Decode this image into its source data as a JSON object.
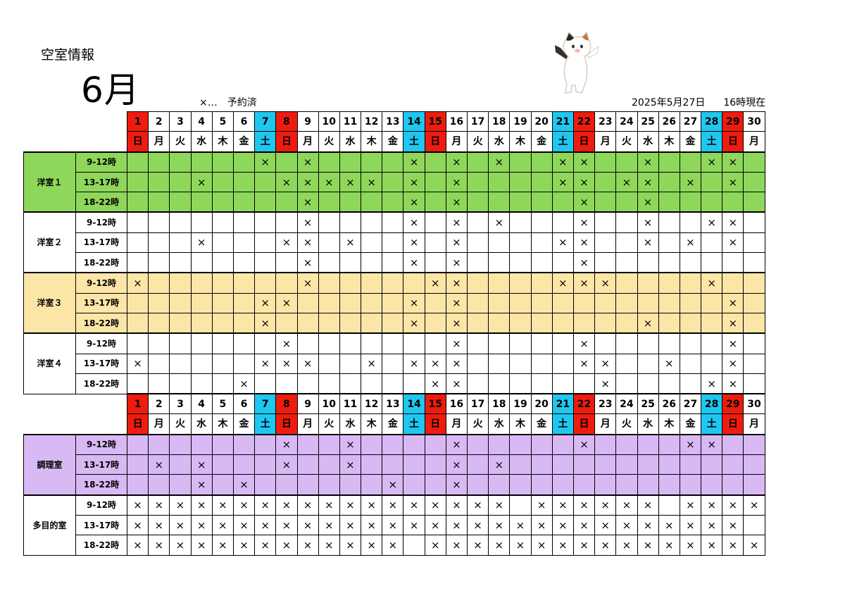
{
  "title": "空室情報",
  "month": "6月",
  "legend": "×…　予約済",
  "as_of_date": "2025年5月27日",
  "as_of_time": "16時現在",
  "colors": {
    "sunday": "#ee1c0e",
    "saturday": "#1fc7f0",
    "room1": "#8fd75b",
    "room3": "#fbe6a8",
    "cooking": "#d9b9f4"
  },
  "days": [
    "1",
    "2",
    "3",
    "4",
    "5",
    "6",
    "7",
    "8",
    "9",
    "10",
    "11",
    "12",
    "13",
    "14",
    "15",
    "16",
    "17",
    "18",
    "19",
    "20",
    "21",
    "22",
    "23",
    "24",
    "25",
    "26",
    "27",
    "28",
    "29",
    "30"
  ],
  "weekdays": [
    "日",
    "月",
    "火",
    "水",
    "木",
    "金",
    "土",
    "日",
    "月",
    "火",
    "水",
    "木",
    "金",
    "土",
    "日",
    "月",
    "火",
    "水",
    "木",
    "金",
    "土",
    "日",
    "月",
    "火",
    "水",
    "木",
    "金",
    "土",
    "日",
    "月"
  ],
  "reserved_mark": "×",
  "rooms": [
    {
      "name": "洋室１",
      "slots": [
        {
          "label": "9-12時",
          "reserved": [
            7,
            9,
            14,
            16,
            18,
            21,
            22,
            25,
            28,
            29
          ]
        },
        {
          "label": "13-17時",
          "reserved": [
            4,
            8,
            9,
            10,
            11,
            12,
            14,
            16,
            21,
            22,
            24,
            25,
            27,
            29
          ]
        },
        {
          "label": "18-22時",
          "reserved": [
            9,
            14,
            16,
            22,
            25
          ]
        }
      ]
    },
    {
      "name": "洋室２",
      "slots": [
        {
          "label": "9-12時",
          "reserved": [
            9,
            14,
            16,
            18,
            22,
            25,
            28,
            29
          ]
        },
        {
          "label": "13-17時",
          "reserved": [
            4,
            8,
            9,
            11,
            14,
            16,
            21,
            22,
            25,
            27,
            29
          ]
        },
        {
          "label": "18-22時",
          "reserved": [
            9,
            14,
            16,
            22
          ]
        }
      ]
    },
    {
      "name": "洋室３",
      "slots": [
        {
          "label": "9-12時",
          "reserved": [
            1,
            9,
            15,
            16,
            21,
            22,
            23,
            28
          ]
        },
        {
          "label": "13-17時",
          "reserved": [
            7,
            8,
            14,
            16,
            29
          ]
        },
        {
          "label": "18-22時",
          "reserved": [
            7,
            14,
            16,
            25,
            29
          ]
        }
      ]
    },
    {
      "name": "洋室４",
      "slots": [
        {
          "label": "9-12時",
          "reserved": [
            8,
            16,
            22,
            29
          ]
        },
        {
          "label": "13-17時",
          "reserved": [
            1,
            7,
            8,
            9,
            12,
            14,
            15,
            16,
            22,
            23,
            26,
            29
          ]
        },
        {
          "label": "18-22時",
          "reserved": [
            6,
            15,
            16,
            23,
            28,
            29
          ]
        }
      ]
    },
    {
      "name": "調理室",
      "slots": [
        {
          "label": "9-12時",
          "reserved": [
            8,
            11,
            16,
            22,
            27,
            28
          ]
        },
        {
          "label": "13-17時",
          "reserved": [
            2,
            4,
            8,
            11,
            16,
            18
          ]
        },
        {
          "label": "18-22時",
          "reserved": [
            4,
            6,
            13,
            16
          ]
        }
      ]
    },
    {
      "name": "多目的室",
      "slots": [
        {
          "label": "9-12時",
          "reserved": [
            1,
            2,
            3,
            4,
            5,
            6,
            7,
            8,
            9,
            10,
            11,
            12,
            13,
            14,
            15,
            16,
            17,
            18,
            20,
            21,
            22,
            23,
            24,
            25,
            27,
            28,
            29,
            30
          ]
        },
        {
          "label": "13-17時",
          "reserved": [
            1,
            2,
            3,
            4,
            5,
            6,
            7,
            8,
            9,
            10,
            11,
            12,
            13,
            14,
            15,
            16,
            17,
            18,
            19,
            20,
            21,
            22,
            23,
            24,
            25,
            26,
            27,
            28,
            29
          ]
        },
        {
          "label": "18-22時",
          "reserved": [
            1,
            2,
            3,
            4,
            5,
            6,
            7,
            8,
            9,
            10,
            11,
            12,
            13,
            15,
            16,
            17,
            18,
            19,
            20,
            21,
            22,
            23,
            24,
            25,
            26,
            27,
            28,
            29,
            30
          ]
        }
      ]
    }
  ]
}
